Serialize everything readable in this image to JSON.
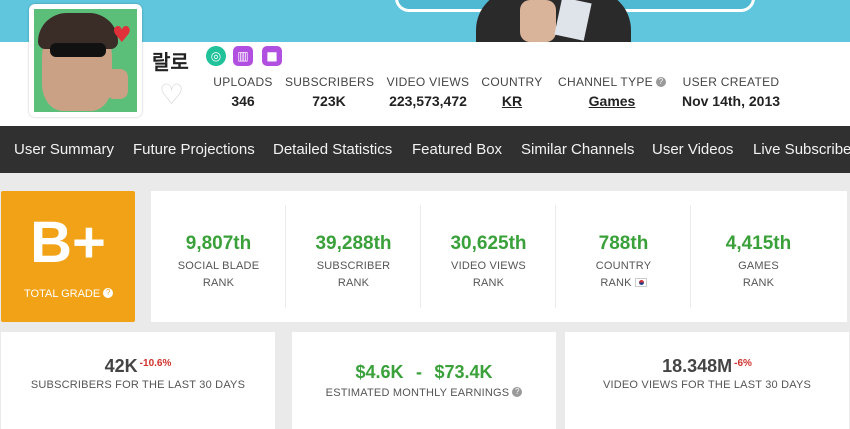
{
  "channel": {
    "name": "랄로",
    "icons": [
      "target-icon",
      "chart-icon",
      "video-icon"
    ]
  },
  "stats": {
    "uploads": {
      "label": "UPLOADS",
      "value": "346"
    },
    "subscribers": {
      "label": "SUBSCRIBERS",
      "value": "723K"
    },
    "video_views": {
      "label": "VIDEO VIEWS",
      "value": "223,573,472"
    },
    "country": {
      "label": "COUNTRY",
      "value": "KR"
    },
    "channel_type": {
      "label": "CHANNEL TYPE",
      "value": "Games"
    },
    "user_created": {
      "label": "USER CREATED",
      "value": "Nov 14th, 2013"
    }
  },
  "nav": [
    "User Summary",
    "Future Projections",
    "Detailed Statistics",
    "Featured Box",
    "Similar Channels",
    "User Videos",
    "Live Subscriber"
  ],
  "grade": {
    "value": "B+",
    "label": "TOTAL GRADE"
  },
  "ranks": [
    {
      "value": "9,807th",
      "line1": "SOCIAL BLADE",
      "line2": "RANK"
    },
    {
      "value": "39,288th",
      "line1": "SUBSCRIBER",
      "line2": "RANK"
    },
    {
      "value": "30,625th",
      "line1": "VIDEO VIEWS",
      "line2": "RANK"
    },
    {
      "value": "788th",
      "line1": "COUNTRY",
      "line2": "RANK"
    },
    {
      "value": "4,415th",
      "line1": "GAMES",
      "line2": "RANK"
    }
  ],
  "cards": {
    "subs30": {
      "value": "42K",
      "change": "-10.6%",
      "label": "SUBSCRIBERS FOR THE LAST 30 DAYS"
    },
    "earnings": {
      "low": "$4.6K",
      "sep": "-",
      "high": "$73.4K",
      "label": "ESTIMATED MONTHLY EARNINGS"
    },
    "views30": {
      "value": "18.348M",
      "change": "-6%",
      "label": "VIDEO VIEWS FOR THE LAST 30 DAYS"
    }
  },
  "colors": {
    "grade_bg": "#f1a217",
    "rank_green": "#3aa13a",
    "nav_bg": "#303030",
    "decline_red": "#d0302a"
  }
}
